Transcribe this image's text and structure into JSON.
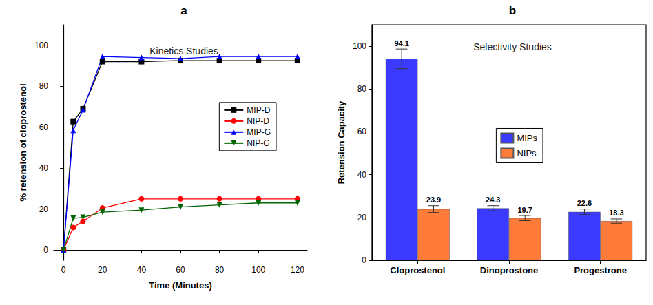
{
  "chart_data": [
    {
      "type": "line",
      "title": "Kinetics Studies",
      "annotations": [
        "a"
      ],
      "x_label": "Time (Minutes)",
      "y_label": "% retension of cloprostenol",
      "x": [
        0,
        5,
        10,
        20,
        40,
        60,
        80,
        100,
        120
      ],
      "series": [
        {
          "name": "MIP-D",
          "color": "#000000",
          "marker": "square",
          "line_style": "solid",
          "values": [
            0,
            62.7,
            69.0,
            92.0,
            92.0,
            92.5,
            92.5,
            92.5,
            92.5
          ]
        },
        {
          "name": "NIP-D",
          "color": "#ff0000",
          "marker": "circle",
          "line_style": "solid",
          "values": [
            0,
            11.0,
            14.0,
            20.5,
            25.0,
            25.0,
            25.0,
            25.0,
            25.0
          ]
        },
        {
          "name": "MIP-G",
          "color": "#0000ff",
          "marker": "triangle",
          "line_style": "solid",
          "values": [
            0,
            58.5,
            68.5,
            94.5,
            94.0,
            93.5,
            94.5,
            94.5,
            94.5
          ]
        },
        {
          "name": "NIP-G",
          "color": "#006400",
          "marker": "triangle-down",
          "line_style": "solid",
          "values": [
            0,
            15.5,
            16.0,
            18.5,
            19.5,
            21.0,
            22.0,
            23.0,
            23.0
          ]
        }
      ],
      "xlim": [
        -5,
        125
      ],
      "xticks": [
        0,
        20,
        40,
        60,
        80,
        100,
        120
      ],
      "ylim": [
        -5,
        110
      ],
      "yticks": [
        0,
        20,
        40,
        60,
        80,
        100
      ],
      "grid": false,
      "legend": "right"
    },
    {
      "type": "bar",
      "title": "Selectivity Studies",
      "annotations": [
        "b"
      ],
      "y_label": "Retension Capacity",
      "categories": [
        "Cloprostenol",
        "Dinoprostone",
        "Progestrone"
      ],
      "series": [
        {
          "name": "MIPs",
          "color": "#3b3bff",
          "values": [
            94.1,
            24.3,
            22.6
          ],
          "errors": [
            4.6,
            1.2,
            1.3
          ]
        },
        {
          "name": "NIPs",
          "color": "#ff7b3a",
          "values": [
            23.9,
            19.7,
            18.3
          ],
          "errors": [
            1.6,
            1.2,
            1.0
          ]
        }
      ],
      "ylim": [
        0,
        110
      ],
      "yticks": [
        0,
        20,
        40,
        60,
        80,
        100
      ],
      "grid": false,
      "legend": "right",
      "data_labels": true
    }
  ]
}
